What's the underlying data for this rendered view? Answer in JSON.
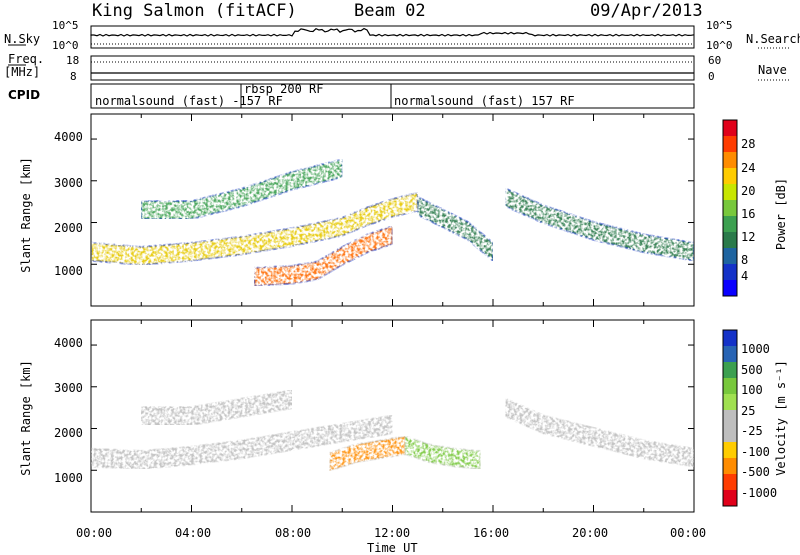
{
  "header": {
    "station": "King Salmon (fitACF)",
    "beam": "Beam 02",
    "date": "09/Apr/2013"
  },
  "noise_panel": {
    "left_label": "N.Sky",
    "right_label": "N.Search",
    "left_ticks": [
      "10^5",
      "10^0"
    ],
    "right_ticks": [
      "10^5",
      "10^0"
    ]
  },
  "freq_panel": {
    "left_label_1": "Freq.",
    "left_label_2": "[MHz]",
    "left_ticks": [
      "18",
      "8"
    ],
    "right_label": "Nave",
    "right_ticks": [
      "60",
      "0"
    ]
  },
  "cpid": {
    "label": "CPID",
    "segments": [
      {
        "text": "normalsound (fast) -157 RF",
        "start_hour": 0,
        "end_hour": 6
      },
      {
        "text": "rbsp 200 RF",
        "start_hour": 6,
        "end_hour": 12
      },
      {
        "text": "normalsound (fast) 157 RF",
        "start_hour": 12,
        "end_hour": 24
      }
    ]
  },
  "power_colorbar": {
    "label": "Power [dB]",
    "ticks": [
      "28",
      "24",
      "20",
      "16",
      "12",
      "8",
      "4"
    ],
    "colors": [
      "#e0001a",
      "#ff3c00",
      "#ff8c00",
      "#ffcc00",
      "#c8e600",
      "#78c83c",
      "#3ca050",
      "#2a7a4a",
      "#1e64a0",
      "#1432c8",
      "#0a00ff"
    ]
  },
  "velocity_colorbar": {
    "label": "Velocity [m s⁻¹]",
    "ticks": [
      "1000",
      "500",
      "100",
      "25",
      "-25",
      "-100",
      "-500",
      "-1000"
    ],
    "colors": [
      "#1432c8",
      "#2864b4",
      "#3ca050",
      "#78c83c",
      "#a0e050",
      "#bebebe",
      "#bebebe",
      "#ffcc00",
      "#ff8c00",
      "#ff3c00",
      "#e0001a"
    ]
  },
  "chart_data": [
    {
      "type": "heatmap",
      "name": "power",
      "ylabel": "Slant Range [km]",
      "y_ticks": [
        "1000",
        "2000",
        "3000",
        "4000"
      ],
      "ylim": [
        0,
        4600
      ],
      "xlim_hours": [
        0,
        24
      ],
      "bands": [
        {
          "x": [
            0,
            2,
            4,
            6,
            8,
            10,
            11,
            12,
            13
          ],
          "y": [
            1300,
            1200,
            1300,
            1450,
            1650,
            1900,
            2150,
            2350,
            2500
          ],
          "value_db": 20
        },
        {
          "x": [
            2,
            4,
            6,
            8,
            10
          ],
          "y": [
            2300,
            2300,
            2600,
            3000,
            3300
          ],
          "value_db": 14
        },
        {
          "x": [
            6.5,
            8,
            9,
            10,
            11,
            12
          ],
          "y": [
            700,
            750,
            850,
            1200,
            1500,
            1700
          ],
          "value_db": 22
        },
        {
          "x": [
            13,
            14,
            15,
            16
          ],
          "y": [
            2400,
            2100,
            1800,
            1300
          ],
          "value_db": 10
        },
        {
          "x": [
            16.5,
            18,
            20,
            22,
            24
          ],
          "y": [
            2600,
            2200,
            1800,
            1500,
            1300
          ],
          "value_db": 12
        }
      ]
    },
    {
      "type": "heatmap",
      "name": "velocity",
      "ylabel": "Slant Range [km]",
      "y_ticks": [
        "1000",
        "2000",
        "3000",
        "4000"
      ],
      "ylim": [
        0,
        4600
      ],
      "xlim_hours": [
        0,
        24
      ],
      "x_ticks": [
        "00:00",
        "04:00",
        "08:00",
        "12:00",
        "16:00",
        "20:00",
        "00:00"
      ],
      "xlabel": "Time UT",
      "bands": [
        {
          "x": [
            0,
            2,
            4,
            6,
            8,
            10,
            12
          ],
          "y": [
            1300,
            1250,
            1350,
            1500,
            1700,
            1900,
            2100
          ],
          "value_ms": 0
        },
        {
          "x": [
            2,
            4,
            6,
            8
          ],
          "y": [
            2300,
            2300,
            2500,
            2700
          ],
          "value_ms": 0
        },
        {
          "x": [
            9.5,
            10.5,
            11.5,
            12.5
          ],
          "y": [
            1200,
            1400,
            1500,
            1600
          ],
          "value_ms": -300
        },
        {
          "x": [
            12.5,
            13.5,
            14.5,
            15.5
          ],
          "y": [
            1600,
            1400,
            1300,
            1250
          ],
          "value_ms": 150
        },
        {
          "x": [
            16.5,
            18,
            20,
            22,
            24
          ],
          "y": [
            2500,
            2100,
            1800,
            1500,
            1300
          ],
          "value_ms": 0
        }
      ]
    }
  ]
}
